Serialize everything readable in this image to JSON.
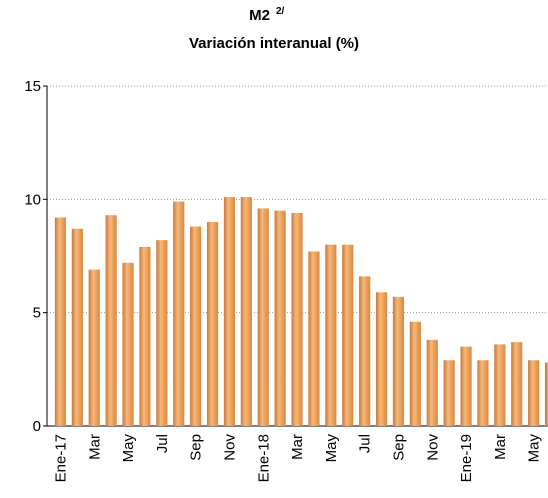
{
  "chart_data": {
    "type": "bar",
    "title": "M2",
    "title_note": "2/",
    "subtitle": "Variación interanual  (%)",
    "categories": [
      "Ene-17",
      null,
      "Mar",
      null,
      "May",
      null,
      "Jul",
      null,
      "Sep",
      null,
      "Nov",
      null,
      "Ene-18",
      null,
      "Mar",
      null,
      "May",
      null,
      "Jul",
      null,
      "Sep",
      null,
      "Nov",
      null,
      "Ene-19",
      null,
      "Mar",
      null,
      "May",
      null
    ],
    "values": [
      9.2,
      8.7,
      6.9,
      9.3,
      7.2,
      7.9,
      8.2,
      9.9,
      8.8,
      9.0,
      10.1,
      10.1,
      9.6,
      9.5,
      9.4,
      7.7,
      8.0,
      8.0,
      6.6,
      5.9,
      5.7,
      4.6,
      3.8,
      2.9,
      3.5,
      2.9,
      3.6,
      3.7,
      2.9,
      2.8
    ],
    "color": "#f0a04e",
    "ylim": [
      0,
      15
    ],
    "yticks": [
      0,
      5,
      10,
      15
    ],
    "grid": true
  }
}
